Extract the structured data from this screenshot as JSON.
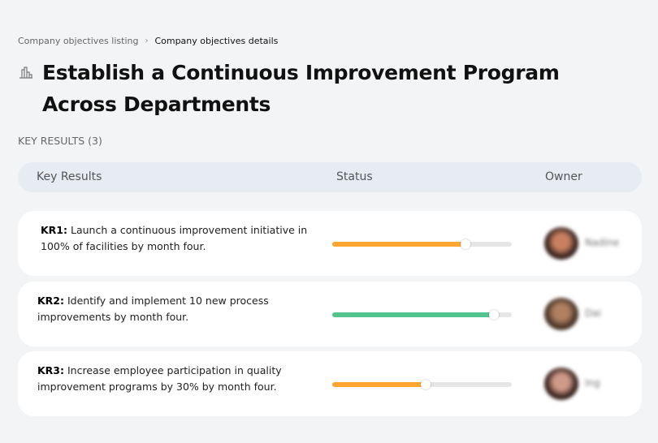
{
  "breadcrumb": {
    "items": [
      "Company objectives listing",
      "Company objectives details"
    ],
    "separator": "›"
  },
  "title": "Establish a Continuous Improvement Program Across Departments",
  "title_icon": "buildings-icon",
  "key_results_count_label": "KEY RESULTS (3)",
  "table": {
    "headers": [
      "Key Results",
      "Status",
      "Owner"
    ]
  },
  "key_results": [
    {
      "label": "KR1:",
      "text": " Launch a continuous improvement initiative in 100% of facilities by month four.",
      "progress": 74,
      "color": "#ffa630",
      "owner": "Nadine"
    },
    {
      "label": "KR2:",
      "text": " Identify and implement 10 new process improvements by month four.",
      "progress": 90,
      "color": "#54c48e",
      "owner": "Dai"
    },
    {
      "label": "KR3:",
      "text": " Increase employee participation in quality improvement programs by 30% by month four.",
      "progress": 52,
      "color": "#ffa630",
      "owner": "Ing"
    }
  ]
}
